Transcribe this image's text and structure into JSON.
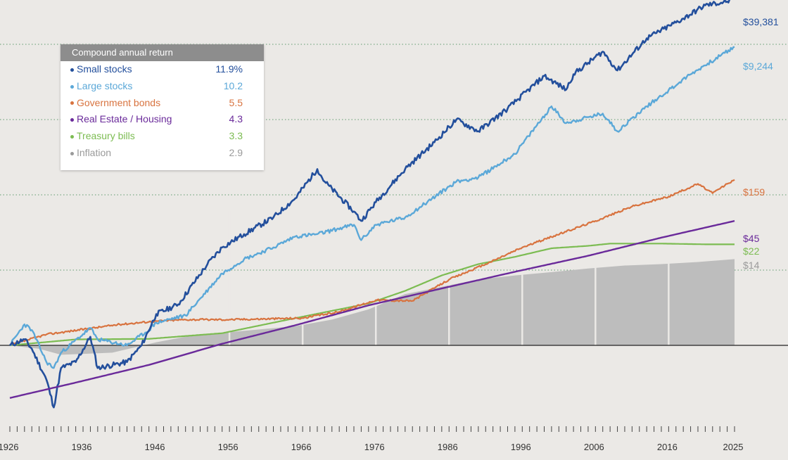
{
  "chart_data": {
    "type": "line",
    "title": "",
    "xlabel": "",
    "ylabel": "",
    "y_scale": "log",
    "grid": "dotted horizontal",
    "x_ticks": [
      1926,
      1936,
      1946,
      1956,
      1966,
      1976,
      1986,
      1996,
      2006,
      2016,
      2025
    ],
    "legend": {
      "title": "Compound annual return",
      "placement": "top-left",
      "entries": [
        {
          "name": "Small stocks",
          "value": "11.9%",
          "color": "#234f9c"
        },
        {
          "name": "Large stocks",
          "value": "10.2",
          "color": "#5ba8d8"
        },
        {
          "name": "Government bonds",
          "value": "5.5",
          "color": "#d8733f"
        },
        {
          "name": "Real Estate / Housing",
          "value": "4.3",
          "color": "#6a2a9a"
        },
        {
          "name": "Treasury bills",
          "value": "3.3",
          "color": "#7cbc52"
        },
        {
          "name": "Inflation",
          "value": "2.9",
          "color": "#9a9a9a"
        }
      ]
    },
    "series": [
      {
        "name": "Small stocks",
        "end_label": "$39,381",
        "color": "#234f9c",
        "x": [
          1926,
          1928,
          1929,
          1931,
          1932,
          1933,
          1935,
          1937,
          1938,
          1942,
          1944,
          1946,
          1949,
          1953,
          1955,
          1958,
          1962,
          1965,
          1968,
          1969,
          1973,
          1974,
          1976,
          1980,
          1984,
          1987,
          1990,
          1994,
          1999,
          2002,
          2003,
          2007,
          2009,
          2013,
          2018,
          2021,
          2024,
          2025
        ],
        "y": [
          1,
          1.2,
          0.9,
          0.35,
          0.15,
          0.5,
          0.6,
          1.3,
          0.5,
          0.6,
          1,
          2.6,
          3.5,
          12,
          20,
          30,
          50,
          90,
          220,
          150,
          60,
          45,
          80,
          220,
          500,
          1000,
          700,
          1400,
          3800,
          2500,
          4000,
          8000,
          4500,
          12000,
          22000,
          33000,
          37000,
          39381
        ]
      },
      {
        "name": "Large stocks",
        "end_label": "$9,244",
        "color": "#5ba8d8",
        "x": [
          1926,
          1928,
          1929,
          1931,
          1932,
          1933,
          1937,
          1938,
          1942,
          1945,
          1946,
          1950,
          1955,
          1958,
          1962,
          1965,
          1968,
          1973,
          1974,
          1976,
          1980,
          1987,
          1990,
          1995,
          2000,
          2002,
          2007,
          2009,
          2013,
          2019,
          2025
        ],
        "y": [
          1,
          1.9,
          1.6,
          0.6,
          0.5,
          0.8,
          1.7,
          1.2,
          1,
          1.6,
          2,
          2.5,
          9,
          14,
          20,
          28,
          30,
          40,
          25,
          40,
          50,
          150,
          170,
          350,
          1500,
          900,
          1200,
          700,
          1500,
          4000,
          9244
        ]
      },
      {
        "name": "Government bonds",
        "end_label": "$159",
        "color": "#d8733f",
        "x": [
          1926,
          1931,
          1941,
          1946,
          1950,
          1956,
          1966,
          1971,
          1976,
          1981,
          1986,
          1991,
          1996,
          2006,
          2011,
          2016,
          2020,
          2022,
          2024,
          2025
        ],
        "y": [
          1,
          1.4,
          1.9,
          2.1,
          2.2,
          2.2,
          2.3,
          2.8,
          4,
          3.9,
          7.5,
          12,
          20,
          45,
          70,
          95,
          140,
          105,
          140,
          159
        ]
      },
      {
        "name": "Real Estate / Housing",
        "end_label": "$45",
        "color": "#6a2a9a",
        "x": [
          1926,
          1935,
          1945,
          1955,
          1965,
          1975,
          1985,
          1995,
          2005,
          2015,
          2025
        ],
        "y": [
          0.2,
          0.32,
          0.55,
          1.05,
          1.85,
          3.4,
          5.7,
          9.5,
          15.5,
          27,
          45
        ]
      },
      {
        "name": "Treasury bills",
        "end_label": "$22",
        "color": "#7cbc52",
        "x": [
          1926,
          1935,
          1945,
          1955,
          1965,
          1975,
          1980,
          1985,
          1990,
          1995,
          2000,
          2005,
          2008,
          2015,
          2021,
          2025
        ],
        "y": [
          1,
          1.2,
          1.22,
          1.45,
          2.3,
          3.6,
          5.3,
          8.5,
          12,
          15,
          19.5,
          21,
          22.5,
          22.5,
          22,
          22
        ]
      },
      {
        "name": "Inflation",
        "end_label": "$14",
        "color": "#9a9a9a",
        "x": [
          1926,
          1930,
          1933,
          1940,
          1946,
          1950,
          1956,
          1965,
          1970,
          1975,
          1980,
          1985,
          1990,
          1995,
          2000,
          2005,
          2010,
          2015,
          2020,
          2025
        ],
        "y": [
          1,
          0.9,
          0.75,
          0.8,
          1.1,
          1.3,
          1.5,
          1.8,
          2.2,
          3,
          4.8,
          6,
          7.5,
          8.5,
          9.4,
          10.5,
          11.5,
          12,
          12.8,
          14
        ]
      }
    ]
  }
}
